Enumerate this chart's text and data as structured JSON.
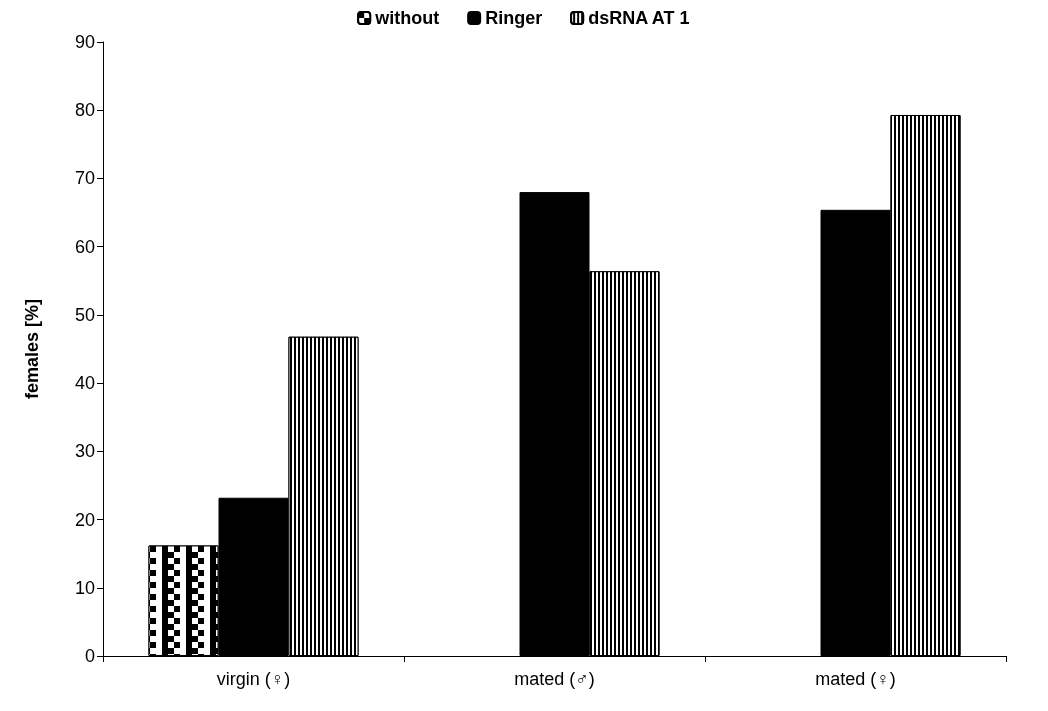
{
  "chart_data": {
    "type": "bar",
    "ylabel": "females [%]",
    "categories": [
      "virgin (♀)",
      "mated (♂)",
      "mated (♀)"
    ],
    "series": [
      {
        "name": "without",
        "color": "#000000",
        "values": [
          16.2,
          null,
          null
        ]
      },
      {
        "name": "Ringer",
        "color": "#000000",
        "values": [
          23.2,
          68.0,
          65.4
        ]
      },
      {
        "name": "dsRNA AT 1",
        "color": "#000000",
        "values": [
          46.8,
          56.4,
          79.3
        ]
      }
    ],
    "ylim": [
      0,
      90
    ],
    "yticks": [
      0,
      10,
      20,
      30,
      40,
      50,
      60,
      70,
      80,
      90
    ],
    "grid": false,
    "legend": "top"
  }
}
